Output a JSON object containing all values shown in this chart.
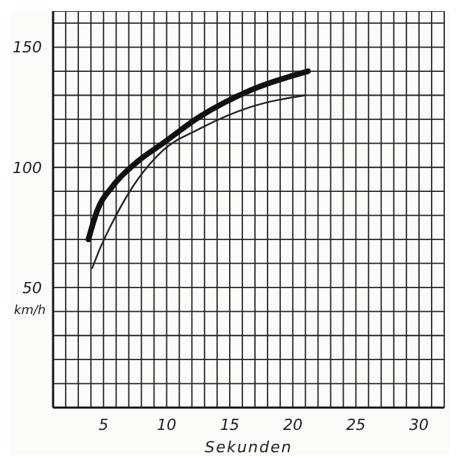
{
  "chart_data": {
    "type": "line",
    "xlabel": "Sekunden",
    "ylabel": "km/h",
    "xlim": [
      1,
      32
    ],
    "ylim": [
      0,
      165
    ],
    "xticks": [
      {
        "value": 1,
        "label": null
      },
      {
        "value": 2,
        "label": null
      },
      {
        "value": 3,
        "label": null
      },
      {
        "value": 4,
        "label": null
      },
      5,
      {
        "value": 6,
        "label": null
      },
      {
        "value": 7,
        "label": null
      },
      {
        "value": 8,
        "label": null
      },
      {
        "value": 9,
        "label": null
      },
      10,
      {
        "value": 11,
        "label": null
      },
      {
        "value": 12,
        "label": null
      },
      {
        "value": 13,
        "label": null
      },
      {
        "value": 14,
        "label": null
      },
      15,
      {
        "value": 16,
        "label": null
      },
      {
        "value": 17,
        "label": null
      },
      {
        "value": 18,
        "label": null
      },
      {
        "value": 19,
        "label": null
      },
      20,
      {
        "value": 21,
        "label": null
      },
      {
        "value": 22,
        "label": null
      },
      {
        "value": 23,
        "label": null
      },
      {
        "value": 24,
        "label": null
      },
      25,
      {
        "value": 26,
        "label": null
      },
      {
        "value": 27,
        "label": null
      },
      {
        "value": 28,
        "label": null
      },
      {
        "value": 29,
        "label": null
      },
      30,
      {
        "value": 31,
        "label": null
      },
      {
        "value": 32,
        "label": null
      }
    ],
    "yticks": [
      {
        "value": 0,
        "label": null
      },
      {
        "value": 10,
        "label": null
      },
      {
        "value": 20,
        "label": null
      },
      {
        "value": 30,
        "label": null
      },
      {
        "value": 40,
        "label": null
      },
      50,
      {
        "value": 60,
        "label": null
      },
      {
        "value": 70,
        "label": null
      },
      {
        "value": 80,
        "label": null
      },
      {
        "value": 90,
        "label": null
      },
      100,
      {
        "value": 110,
        "label": null
      },
      {
        "value": 120,
        "label": null
      },
      {
        "value": 130,
        "label": null
      },
      {
        "value": 140,
        "label": null
      },
      150,
      {
        "value": 160,
        "label": null
      }
    ],
    "grid": true,
    "marker": "none",
    "series": [
      {
        "color": "#111111",
        "x": [
          3.8,
          4.5,
          5.7,
          7.6,
          9.7,
          12.6,
          16.6,
          21.2
        ],
        "values": [
          70,
          82,
          92,
          102,
          110,
          121,
          132,
          140
        ]
      },
      {
        "color": "#222222",
        "x": [
          4.1,
          4.7,
          5.6,
          7.2,
          9.7,
          12.6,
          16.6,
          21
        ],
        "values": [
          58,
          66,
          76,
          91,
          107,
          116,
          125,
          130
        ]
      }
    ]
  }
}
